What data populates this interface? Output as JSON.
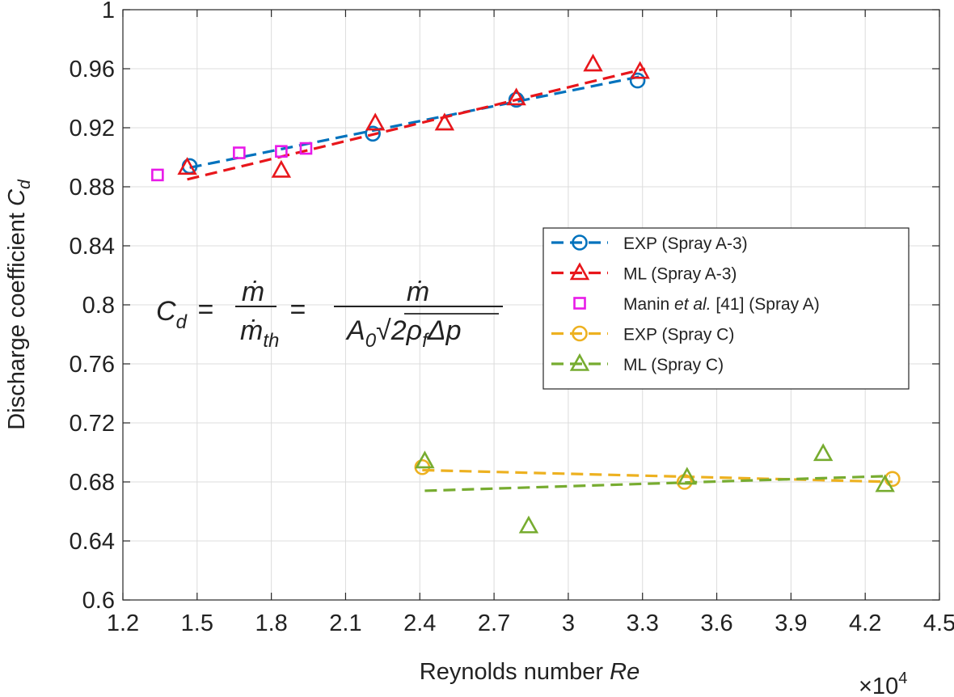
{
  "chart_data": {
    "type": "scatter",
    "title": "",
    "xlabel": "Reynolds number",
    "xlabel_symbol": "Re",
    "ylabel": "Discharge coefficient",
    "ylabel_symbol": "C",
    "ylabel_subscript": "d",
    "xlim": [
      12000,
      45000
    ],
    "ylim": [
      0.6,
      1.0
    ],
    "x_ticks": [
      12000,
      15000,
      18000,
      21000,
      24000,
      27000,
      30000,
      33000,
      36000,
      39000,
      42000,
      45000
    ],
    "x_tick_labels": [
      "1.2",
      "1.5",
      "1.8",
      "2.1",
      "2.4",
      "2.7",
      "3",
      "3.3",
      "3.6",
      "3.9",
      "4.2",
      "4.5"
    ],
    "y_ticks": [
      0.6,
      0.64,
      0.68,
      0.72,
      0.76,
      0.8,
      0.84,
      0.88,
      0.92,
      0.96,
      1.0
    ],
    "y_tick_labels": [
      "0.6",
      "0.64",
      "0.68",
      "0.72",
      "0.76",
      "0.8",
      "0.84",
      "0.88",
      "0.92",
      "0.96",
      "1"
    ],
    "x_exponent_label": "×10",
    "x_exponent_power": "4",
    "grid": true,
    "legend_position": "right",
    "series": [
      {
        "name": "EXP (Spray A-3)",
        "color": "#0072BD",
        "marker": "circle",
        "x": [
          14700,
          22100,
          27900,
          32800
        ],
        "y": [
          0.894,
          0.916,
          0.939,
          0.952
        ],
        "fit": [
          [
            14700,
            0.893
          ],
          [
            33000,
            0.955
          ]
        ]
      },
      {
        "name": "ML (Spray A-3)",
        "color": "#E8161B",
        "marker": "triangle",
        "x": [
          14600,
          18400,
          22200,
          25000,
          27900,
          31000,
          32900
        ],
        "y": [
          0.893,
          0.891,
          0.923,
          0.923,
          0.94,
          0.963,
          0.958
        ],
        "fit": [
          [
            14600,
            0.885
          ],
          [
            33100,
            0.96
          ]
        ]
      },
      {
        "name_parts": [
          "Manin ",
          "et al.",
          " [41] (Spray A)"
        ],
        "name": "Manin et al. [41] (Spray A)",
        "color": "#E81AE8",
        "marker": "square",
        "x": [
          13400,
          16700,
          18400,
          19400
        ],
        "y": [
          0.888,
          0.903,
          0.904,
          0.906
        ],
        "fit": null
      },
      {
        "name": "EXP (Spray C)",
        "color": "#EDB120",
        "marker": "circle",
        "x": [
          24100,
          34700,
          43100
        ],
        "y": [
          0.69,
          0.68,
          0.682
        ],
        "fit": [
          [
            24100,
            0.688
          ],
          [
            43100,
            0.68
          ]
        ]
      },
      {
        "name": "ML (Spray C)",
        "color": "#77AC30",
        "marker": "triangle",
        "x": [
          24200,
          28400,
          34800,
          40300,
          42800
        ],
        "y": [
          0.694,
          0.65,
          0.683,
          0.699,
          0.678
        ],
        "fit": [
          [
            24200,
            0.674
          ],
          [
            43000,
            0.684
          ]
        ]
      }
    ],
    "annotation": {
      "lhs": "C",
      "lhs_sub": "d",
      "equals": "=",
      "frac1_num": "ṁ",
      "frac1_den": "ṁ",
      "frac1_den_sub": "th",
      "frac2_num": "ṁ",
      "frac2_den_a": "A",
      "frac2_den_a_sub": "0",
      "frac2_den_root": "√",
      "frac2_den_b": "2ρ",
      "frac2_den_b_sub": "f",
      "frac2_den_c": "Δp"
    }
  }
}
